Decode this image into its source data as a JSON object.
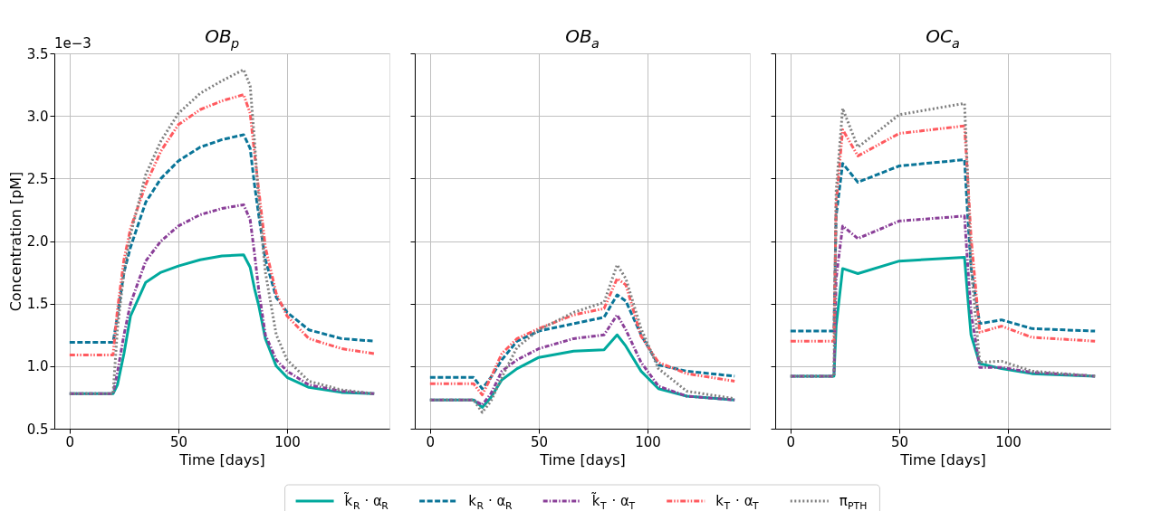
{
  "chart_data": [
    {
      "type": "line",
      "title": "OB$_{p}$",
      "xlabel": "Time [days]",
      "ylabel": "Concentration [pM]",
      "annotations": [
        "1e−3"
      ],
      "xlim": [
        -7,
        147
      ],
      "ylim": [
        0.5,
        3.5
      ],
      "xticks": [
        0,
        50,
        100
      ],
      "yticks": [
        0.5,
        {
          "value": 1,
          "label": "1.0"
        },
        1.5,
        {
          "value": 2,
          "label": "2.0"
        },
        2.5,
        {
          "value": 3,
          "label": "3.0"
        },
        3.5
      ],
      "grid": true,
      "legend": "bottom",
      "marker": "none",
      "x": [
        0,
        20,
        22,
        25,
        28,
        35,
        42,
        50,
        60,
        70,
        80,
        83,
        85,
        87,
        90,
        95,
        100,
        110,
        125,
        140
      ],
      "series": [
        {
          "name": "k̃$_{R}$ · α$_{R}$",
          "color": "#00a99d",
          "line_style": "solid",
          "values": [
            0.78,
            0.78,
            0.85,
            1.1,
            1.4,
            1.67,
            1.75,
            1.8,
            1.85,
            1.88,
            1.89,
            1.79,
            1.62,
            1.48,
            1.22,
            1.0,
            0.91,
            0.83,
            0.79,
            0.78
          ]
        },
        {
          "name": "k$_{R}$ · α$_{R}$",
          "color": "#0a7598",
          "line_style": "dashed",
          "values": [
            1.19,
            1.19,
            1.4,
            1.75,
            1.95,
            2.31,
            2.5,
            2.64,
            2.75,
            2.81,
            2.85,
            2.74,
            2.45,
            2.2,
            1.85,
            1.55,
            1.43,
            1.29,
            1.22,
            1.2
          ]
        },
        {
          "name": "k̃$_{T}$ · α$_{T}$",
          "color": "#8a3f98",
          "line_style": "dashdot",
          "values": [
            0.78,
            0.78,
            0.95,
            1.25,
            1.5,
            1.84,
            2.0,
            2.12,
            2.21,
            2.26,
            2.29,
            2.17,
            1.9,
            1.6,
            1.25,
            1.05,
            0.96,
            0.85,
            0.8,
            0.78
          ]
        },
        {
          "name": "k$_{T}$ · α$_{T}$",
          "color": "#ff5a5f",
          "line_style": "dashdotdot",
          "values": [
            1.09,
            1.09,
            1.45,
            1.85,
            2.1,
            2.45,
            2.72,
            2.93,
            3.05,
            3.12,
            3.17,
            3.02,
            2.7,
            2.4,
            1.95,
            1.58,
            1.4,
            1.22,
            1.14,
            1.1
          ]
        },
        {
          "name": "π$_{PTH}$",
          "color": "#808080",
          "line_style": "dotted",
          "values": [
            0.78,
            0.78,
            1.3,
            1.75,
            2.05,
            2.53,
            2.8,
            3.02,
            3.18,
            3.28,
            3.37,
            3.24,
            2.8,
            2.3,
            1.75,
            1.25,
            1.05,
            0.88,
            0.81,
            0.78
          ]
        }
      ]
    },
    {
      "type": "line",
      "title": "OB$_{a}$",
      "xlabel": "Time [days]",
      "xlim": [
        -7,
        147
      ],
      "ylim": [
        0.5,
        3.5
      ],
      "xticks": [
        0,
        50,
        100
      ],
      "yticks": [
        0.5,
        1,
        1.5,
        2,
        2.5,
        3,
        3.5
      ],
      "tick_labels": "x",
      "grid": true,
      "legend": "bottom",
      "marker": "none",
      "x": [
        0,
        20,
        24,
        28,
        33,
        40,
        50,
        66,
        80,
        86,
        90,
        97,
        105,
        118,
        140
      ],
      "series": [
        {
          "name": "k̃$_{R}$ · α$_{R}$",
          "color": "#00a99d",
          "line_style": "solid",
          "values": [
            0.73,
            0.73,
            0.67,
            0.75,
            0.89,
            0.98,
            1.07,
            1.12,
            1.13,
            1.25,
            1.16,
            0.96,
            0.82,
            0.76,
            0.73
          ]
        },
        {
          "name": "k$_{R}$ · α$_{R}$",
          "color": "#0a7598",
          "line_style": "dashed",
          "values": [
            0.91,
            0.91,
            0.82,
            0.91,
            1.05,
            1.2,
            1.28,
            1.34,
            1.39,
            1.57,
            1.52,
            1.25,
            1.01,
            0.96,
            0.92
          ]
        },
        {
          "name": "k̃$_{T}$ · α$_{T}$",
          "color": "#8a3f98",
          "line_style": "dashdot",
          "values": [
            0.73,
            0.73,
            0.69,
            0.78,
            0.96,
            1.05,
            1.14,
            1.22,
            1.25,
            1.41,
            1.29,
            1.03,
            0.84,
            0.76,
            0.73
          ]
        },
        {
          "name": "k$_{T}$ · α$_{T}$",
          "color": "#ff5a5f",
          "line_style": "dashdotdot",
          "values": [
            0.86,
            0.86,
            0.77,
            0.91,
            1.1,
            1.22,
            1.3,
            1.41,
            1.46,
            1.7,
            1.65,
            1.24,
            1.03,
            0.94,
            0.88
          ]
        },
        {
          "name": "π$_{PTH}$",
          "color": "#808080",
          "line_style": "dotted",
          "values": [
            0.73,
            0.73,
            0.63,
            0.72,
            0.91,
            1.15,
            1.29,
            1.43,
            1.51,
            1.81,
            1.7,
            1.3,
            0.98,
            0.8,
            0.74
          ]
        }
      ]
    },
    {
      "type": "line",
      "title": "OC$_{a}$",
      "xlabel": "Time [days]",
      "xlim": [
        -7,
        147
      ],
      "ylim": [
        0.5,
        3.5
      ],
      "xticks": [
        0,
        50,
        100
      ],
      "yticks": [
        0.5,
        1,
        1.5,
        2,
        2.5,
        3,
        3.5
      ],
      "tick_labels": "x",
      "grid": true,
      "legend": "bottom",
      "marker": "none",
      "x": [
        0,
        20,
        21,
        24,
        31,
        50,
        80,
        81.5,
        83,
        87,
        97,
        111,
        140
      ],
      "series": [
        {
          "name": "k̃$_{R}$ · α$_{R}$",
          "color": "#00a99d",
          "line_style": "solid",
          "values": [
            0.92,
            0.92,
            1.32,
            1.78,
            1.74,
            1.84,
            1.87,
            1.55,
            1.25,
            1.02,
            0.98,
            0.94,
            0.92
          ]
        },
        {
          "name": "k$_{R}$ · α$_{R}$",
          "color": "#0a7598",
          "line_style": "dashed",
          "values": [
            1.28,
            1.28,
            2.2,
            2.62,
            2.47,
            2.6,
            2.65,
            2.2,
            1.79,
            1.34,
            1.37,
            1.3,
            1.28
          ]
        },
        {
          "name": "k̃$_{T}$ · α$_{T}$",
          "color": "#8a3f98",
          "line_style": "dashdot",
          "values": [
            0.92,
            0.92,
            1.7,
            2.12,
            2.02,
            2.16,
            2.2,
            1.8,
            1.43,
            0.99,
            0.99,
            0.95,
            0.92
          ]
        },
        {
          "name": "k$_{T}$ · α$_{T}$",
          "color": "#ff5a5f",
          "line_style": "dashdotdot",
          "values": [
            1.2,
            1.2,
            2.3,
            2.89,
            2.68,
            2.86,
            2.92,
            2.5,
            2.03,
            1.27,
            1.32,
            1.23,
            1.2
          ]
        },
        {
          "name": "π$_{PTH}$",
          "color": "#808080",
          "line_style": "dotted",
          "values": [
            0.92,
            0.92,
            2.4,
            3.06,
            2.75,
            3.01,
            3.1,
            2.5,
            1.79,
            1.03,
            1.04,
            0.96,
            0.92
          ]
        }
      ]
    }
  ]
}
